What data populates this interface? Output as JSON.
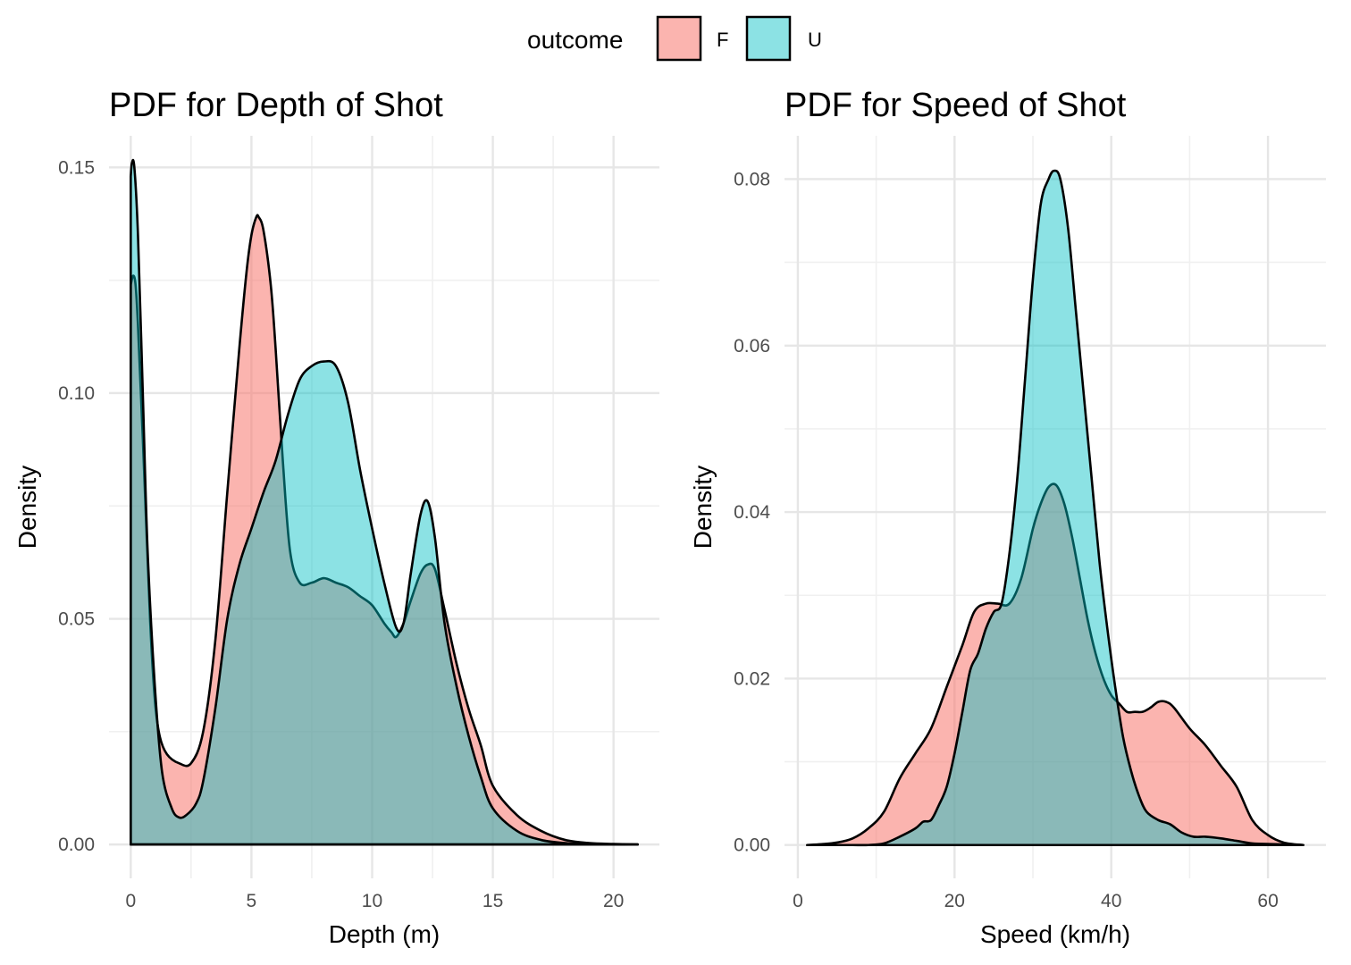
{
  "legend": {
    "title": "outcome",
    "entries": [
      {
        "label": "F",
        "color": "#F8766D"
      },
      {
        "label": "U",
        "color": "#00BFC4"
      }
    ]
  },
  "chart_data": [
    {
      "type": "area",
      "title": "PDF for Depth of Shot",
      "xlabel": "Depth (m)",
      "ylabel": "Density",
      "xlim": [
        -0.9,
        21.9
      ],
      "ylim": [
        -0.0075,
        0.157
      ],
      "xticks": [
        0,
        5,
        10,
        15,
        20
      ],
      "xtick_labels": [
        "0",
        "5",
        "10",
        "15",
        "20"
      ],
      "yticks": [
        0,
        0.05,
        0.1,
        0.15
      ],
      "ytick_labels": [
        "0.00",
        "0.05",
        "0.10",
        "0.15"
      ],
      "grid": true,
      "series": [
        {
          "name": "F",
          "x": [
            0,
            0.1,
            0.2,
            0.3,
            0.5,
            0.8,
            1.0,
            1.2,
            1.5,
            2.0,
            2.5,
            3.0,
            3.5,
            4.0,
            4.5,
            4.8,
            5.0,
            5.2,
            5.3,
            5.5,
            5.8,
            6.0,
            6.3,
            6.6,
            7.0,
            7.5,
            8.0,
            8.5,
            9.0,
            9.5,
            10.0,
            10.5,
            10.8,
            11.0,
            11.3,
            11.6,
            12.0,
            12.3,
            12.6,
            13.0,
            13.5,
            14.0,
            14.5,
            15.0,
            16.0,
            17.0,
            18.0,
            19.0,
            20.0,
            21.0
          ],
          "values": [
            0.124,
            0.126,
            0.124,
            0.115,
            0.09,
            0.05,
            0.032,
            0.024,
            0.02,
            0.018,
            0.018,
            0.025,
            0.045,
            0.078,
            0.11,
            0.127,
            0.135,
            0.139,
            0.139,
            0.136,
            0.124,
            0.11,
            0.085,
            0.065,
            0.058,
            0.058,
            0.059,
            0.058,
            0.057,
            0.055,
            0.053,
            0.049,
            0.047,
            0.046,
            0.049,
            0.054,
            0.06,
            0.062,
            0.061,
            0.052,
            0.04,
            0.03,
            0.022,
            0.013,
            0.0065,
            0.003,
            0.001,
            0.0003,
            0.0001,
            0
          ]
        },
        {
          "name": "U",
          "x": [
            0,
            0.05,
            0.15,
            0.3,
            0.5,
            0.7,
            1.0,
            1.3,
            1.7,
            2.0,
            2.3,
            2.7,
            3.0,
            3.5,
            4.0,
            4.5,
            5.0,
            5.5,
            6.0,
            6.5,
            7.0,
            7.5,
            8.0,
            8.5,
            9.0,
            9.5,
            10.0,
            10.5,
            11.0,
            11.3,
            11.6,
            12.0,
            12.3,
            12.6,
            13.0,
            13.5,
            14.0,
            14.5,
            15.0,
            16.0,
            17.0,
            18.0,
            19.0,
            20.0,
            21.0
          ],
          "values": [
            0.148,
            0.151,
            0.15,
            0.135,
            0.1,
            0.065,
            0.035,
            0.016,
            0.008,
            0.006,
            0.0065,
            0.009,
            0.014,
            0.03,
            0.05,
            0.062,
            0.07,
            0.078,
            0.085,
            0.095,
            0.103,
            0.106,
            0.107,
            0.106,
            0.098,
            0.083,
            0.07,
            0.058,
            0.048,
            0.049,
            0.06,
            0.073,
            0.076,
            0.068,
            0.049,
            0.035,
            0.024,
            0.015,
            0.008,
            0.003,
            0.001,
            0.0003,
            0.0001,
            0,
            0
          ]
        }
      ]
    },
    {
      "type": "area",
      "title": "PDF for Speed of Shot",
      "xlabel": "Speed (km/h)",
      "ylabel": "Density",
      "xlim": [
        -1.7,
        67.4
      ],
      "ylim": [
        -0.004,
        0.0852
      ],
      "xticks": [
        0,
        20,
        40,
        60
      ],
      "xtick_labels": [
        "0",
        "20",
        "40",
        "60"
      ],
      "yticks": [
        0,
        0.02,
        0.04,
        0.06,
        0.08
      ],
      "ytick_labels": [
        "0.00",
        "0.02",
        "0.04",
        "0.06",
        "0.08"
      ],
      "grid": true,
      "series": [
        {
          "name": "F",
          "x": [
            1.2,
            3,
            5,
            7,
            9,
            11,
            13,
            15,
            17,
            19,
            21,
            22.5,
            24,
            25.5,
            27,
            28.5,
            30,
            31,
            32,
            33,
            34,
            35,
            36,
            37,
            38,
            39,
            40,
            41,
            42,
            43,
            44,
            45,
            46,
            47,
            48,
            50,
            52,
            54,
            56,
            58,
            60,
            62,
            64.5
          ],
          "values": [
            0,
            0.0001,
            0.0003,
            0.0008,
            0.002,
            0.004,
            0.008,
            0.011,
            0.014,
            0.019,
            0.024,
            0.028,
            0.029,
            0.029,
            0.029,
            0.032,
            0.038,
            0.041,
            0.043,
            0.0432,
            0.041,
            0.037,
            0.032,
            0.027,
            0.023,
            0.02,
            0.018,
            0.017,
            0.016,
            0.016,
            0.016,
            0.0165,
            0.0172,
            0.0172,
            0.0165,
            0.014,
            0.012,
            0.0095,
            0.007,
            0.003,
            0.0012,
            0.0003,
            0
          ]
        },
        {
          "name": "U",
          "x": [
            1.2,
            3,
            5,
            7,
            9,
            11,
            13,
            15,
            16,
            17,
            18,
            19,
            20,
            21,
            22,
            23,
            24,
            25,
            26,
            27,
            28,
            29,
            30,
            31,
            32,
            32.7,
            33.5,
            34.5,
            35.5,
            36.5,
            37.5,
            38.5,
            39.5,
            40.5,
            41.5,
            42.5,
            43.5,
            44.5,
            46,
            47.5,
            49,
            50.5,
            52,
            54,
            56,
            58,
            61,
            64.5
          ],
          "values": [
            0,
            0,
            0,
            0,
            0,
            0.0002,
            0.001,
            0.002,
            0.0028,
            0.003,
            0.0048,
            0.007,
            0.011,
            0.016,
            0.021,
            0.023,
            0.026,
            0.028,
            0.029,
            0.035,
            0.044,
            0.056,
            0.068,
            0.077,
            0.08,
            0.081,
            0.08,
            0.074,
            0.064,
            0.054,
            0.044,
            0.034,
            0.026,
            0.019,
            0.013,
            0.009,
            0.006,
            0.004,
            0.003,
            0.0025,
            0.0015,
            0.001,
            0.001,
            0.0008,
            0.0005,
            0.0002,
            0.0001,
            0
          ]
        }
      ]
    }
  ]
}
